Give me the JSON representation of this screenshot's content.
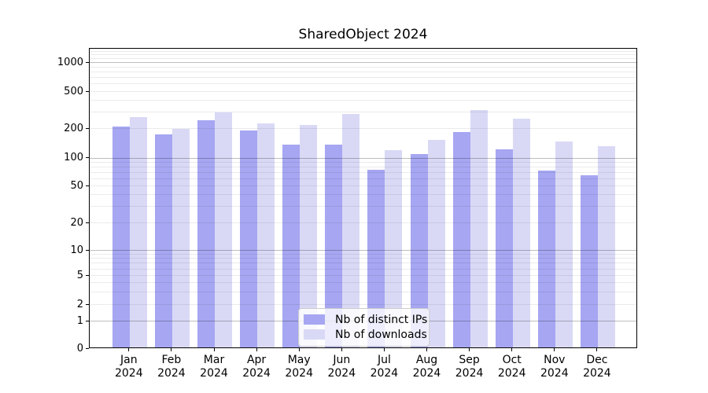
{
  "title": "SharedObject 2024",
  "legend": {
    "items": [
      {
        "label": "Nb of distinct IPs",
        "color": "#a6a6f2"
      },
      {
        "label": "Nb of downloads",
        "color": "#d9d9f6"
      }
    ]
  },
  "chart_data": {
    "type": "bar",
    "title": "SharedObject 2024",
    "categories": [
      "Jan",
      "Feb",
      "Mar",
      "Apr",
      "May",
      "Jun",
      "Jul",
      "Aug",
      "Sep",
      "Oct",
      "Nov",
      "Dec"
    ],
    "category_year": "2024",
    "series": [
      {
        "name": "Nb of distinct IPs",
        "color": "#a6a6f2",
        "values": [
          205,
          170,
          240,
          185,
          134,
          132,
          72,
          107,
          180,
          120,
          71,
          63
        ]
      },
      {
        "name": "Nb of downloads",
        "color": "#d9d9f6",
        "values": [
          260,
          192,
          290,
          220,
          211,
          280,
          116,
          150,
          305,
          246,
          143,
          128
        ]
      }
    ],
    "yscale": "symlog",
    "yticks": [
      0,
      1,
      2,
      5,
      10,
      20,
      50,
      100,
      200,
      500,
      1000
    ],
    "ylim": [
      0,
      1400
    ],
    "grid": true,
    "grid_over_bars": true,
    "legend_position": "lower center",
    "xlabel": "",
    "ylabel": ""
  }
}
